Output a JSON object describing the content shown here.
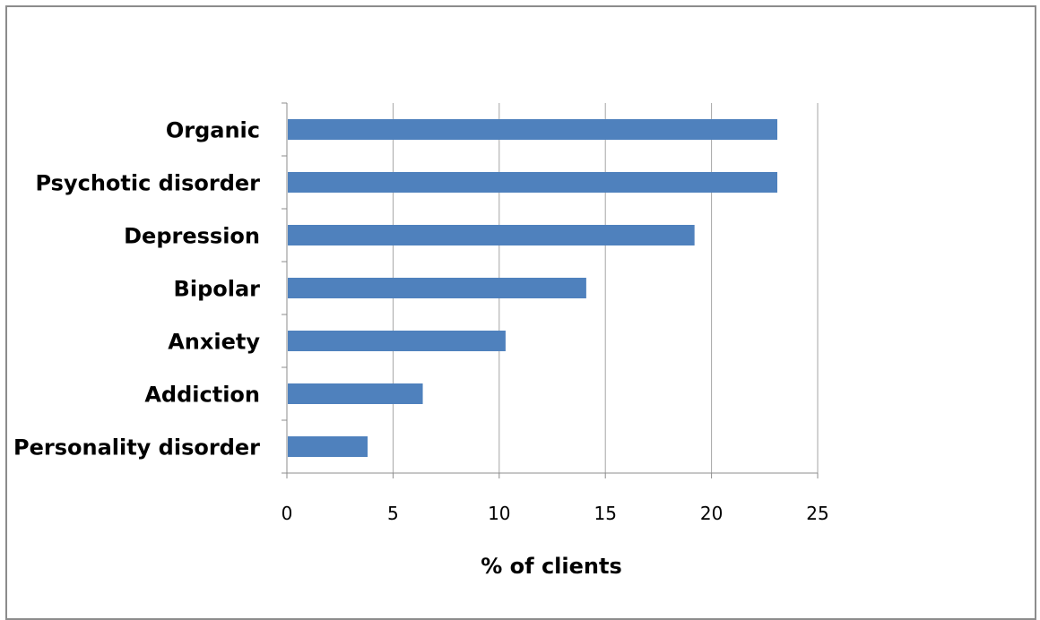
{
  "chart_data": {
    "type": "bar",
    "orientation": "horizontal",
    "categories": [
      "Organic",
      "Psychotic disorder",
      "Depression",
      "Bipolar",
      "Anxiety",
      "Addiction",
      "Personality disorder"
    ],
    "values": [
      23.1,
      23.1,
      19.2,
      14.1,
      10.3,
      6.4,
      3.8
    ],
    "xlabel": "% of clients",
    "ylabel": "",
    "title": "",
    "xlim": [
      0,
      25
    ],
    "xticks": [
      "0",
      "5",
      "10",
      "15",
      "20",
      "25"
    ],
    "grid": "vertical",
    "legend": "none",
    "bar_color": "#4f81bd",
    "grid_color": "#a6a6a6",
    "axis_color": "#8c8c8c"
  }
}
